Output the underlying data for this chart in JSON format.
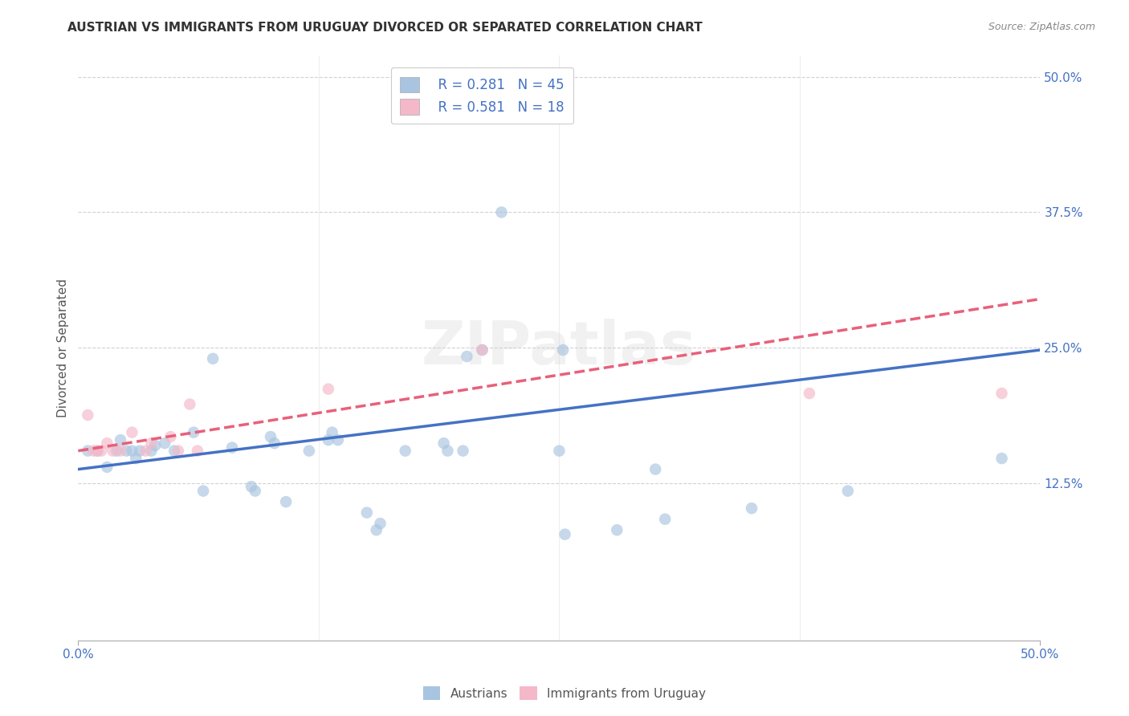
{
  "title": "AUSTRIAN VS IMMIGRANTS FROM URUGUAY DIVORCED OR SEPARATED CORRELATION CHART",
  "source": "Source: ZipAtlas.com",
  "ylabel": "Divorced or Separated",
  "xlim": [
    0.0,
    0.5
  ],
  "ylim": [
    -0.02,
    0.52
  ],
  "background_color": "#ffffff",
  "grid_color": "#cccccc",
  "watermark": "ZIPatlas",
  "blue_scatter": [
    [
      0.005,
      0.155
    ],
    [
      0.01,
      0.155
    ],
    [
      0.015,
      0.14
    ],
    [
      0.02,
      0.155
    ],
    [
      0.022,
      0.165
    ],
    [
      0.025,
      0.155
    ],
    [
      0.028,
      0.155
    ],
    [
      0.03,
      0.148
    ],
    [
      0.032,
      0.155
    ],
    [
      0.038,
      0.155
    ],
    [
      0.04,
      0.16
    ],
    [
      0.045,
      0.162
    ],
    [
      0.05,
      0.155
    ],
    [
      0.06,
      0.172
    ],
    [
      0.065,
      0.118
    ],
    [
      0.07,
      0.24
    ],
    [
      0.08,
      0.158
    ],
    [
      0.09,
      0.122
    ],
    [
      0.092,
      0.118
    ],
    [
      0.1,
      0.168
    ],
    [
      0.102,
      0.162
    ],
    [
      0.108,
      0.108
    ],
    [
      0.12,
      0.155
    ],
    [
      0.13,
      0.165
    ],
    [
      0.132,
      0.172
    ],
    [
      0.135,
      0.165
    ],
    [
      0.15,
      0.098
    ],
    [
      0.155,
      0.082
    ],
    [
      0.157,
      0.088
    ],
    [
      0.17,
      0.155
    ],
    [
      0.19,
      0.162
    ],
    [
      0.192,
      0.155
    ],
    [
      0.2,
      0.155
    ],
    [
      0.202,
      0.242
    ],
    [
      0.21,
      0.248
    ],
    [
      0.22,
      0.375
    ],
    [
      0.25,
      0.155
    ],
    [
      0.252,
      0.248
    ],
    [
      0.253,
      0.078
    ],
    [
      0.28,
      0.082
    ],
    [
      0.3,
      0.138
    ],
    [
      0.305,
      0.092
    ],
    [
      0.35,
      0.102
    ],
    [
      0.4,
      0.118
    ],
    [
      0.48,
      0.148
    ]
  ],
  "pink_scatter": [
    [
      0.005,
      0.188
    ],
    [
      0.008,
      0.155
    ],
    [
      0.01,
      0.155
    ],
    [
      0.012,
      0.155
    ],
    [
      0.015,
      0.162
    ],
    [
      0.018,
      0.155
    ],
    [
      0.022,
      0.155
    ],
    [
      0.028,
      0.172
    ],
    [
      0.035,
      0.155
    ],
    [
      0.038,
      0.162
    ],
    [
      0.048,
      0.168
    ],
    [
      0.052,
      0.155
    ],
    [
      0.058,
      0.198
    ],
    [
      0.062,
      0.155
    ],
    [
      0.13,
      0.212
    ],
    [
      0.21,
      0.248
    ],
    [
      0.38,
      0.208
    ],
    [
      0.48,
      0.208
    ]
  ],
  "blue_line_color": "#4472c4",
  "pink_line_color": "#e8607a",
  "blue_dot_color": "#a8c4e0",
  "pink_dot_color": "#f4b8c8",
  "blue_line_x": [
    0.0,
    0.5
  ],
  "blue_line_y": [
    0.138,
    0.248
  ],
  "pink_line_x": [
    0.0,
    0.5
  ],
  "pink_line_y": [
    0.155,
    0.295
  ],
  "dot_size": 110,
  "dot_alpha": 0.65,
  "title_fontsize": 11,
  "axis_label_fontsize": 11,
  "tick_fontsize": 11,
  "ytick_positions": [
    0.125,
    0.25,
    0.375,
    0.5
  ],
  "ytick_labels": [
    "12.5%",
    "25.0%",
    "37.5%",
    "50.0%"
  ],
  "xtick_positions": [
    0.0,
    0.5
  ],
  "xtick_labels": [
    "0.0%",
    "50.0%"
  ]
}
